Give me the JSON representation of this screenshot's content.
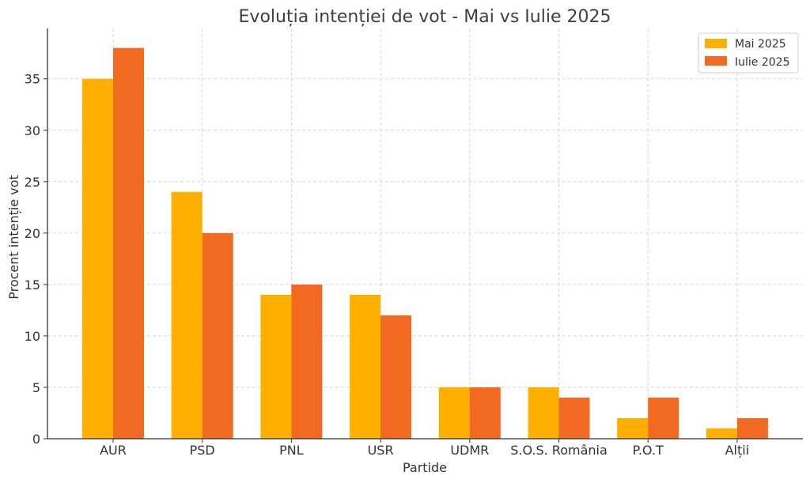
{
  "chart_data": {
    "type": "bar",
    "title": "Evoluția intenției de vot - Mai vs Iulie 2025",
    "xlabel": "Partide",
    "ylabel": "Procent intenție vot",
    "categories": [
      "AUR",
      "PSD",
      "PNL",
      "USR",
      "UDMR",
      "S.O.S. România",
      "P.O.T",
      "Alții"
    ],
    "series": [
      {
        "name": "Mai 2025",
        "values": [
          35,
          24,
          14,
          14,
          5,
          5,
          2,
          1
        ],
        "color": "#FFAF00"
      },
      {
        "name": "Iulie 2025",
        "values": [
          38,
          20,
          15,
          12,
          5,
          4,
          4,
          2
        ],
        "color": "#F26A21"
      }
    ],
    "ylim": [
      0,
      39.9
    ],
    "yticks": [
      "0",
      "5",
      "10",
      "15",
      "20",
      "25",
      "30",
      "35"
    ],
    "grid": true,
    "legend_position": "top-right"
  }
}
